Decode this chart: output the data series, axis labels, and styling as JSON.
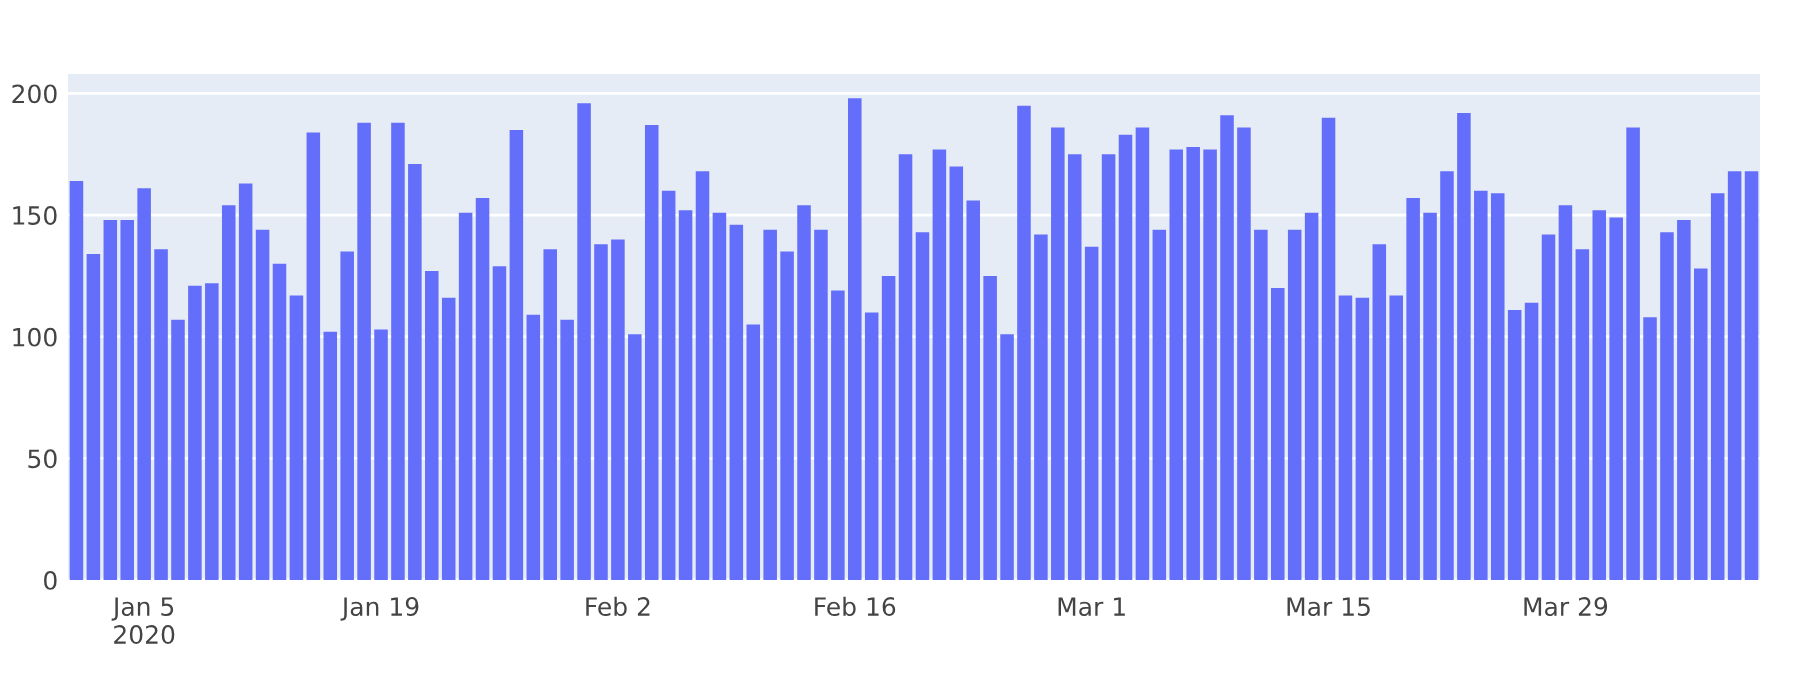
{
  "chart_data": {
    "type": "bar",
    "x": [
      "2020-01-01",
      "2020-01-02",
      "2020-01-03",
      "2020-01-04",
      "2020-01-05",
      "2020-01-06",
      "2020-01-07",
      "2020-01-08",
      "2020-01-09",
      "2020-01-10",
      "2020-01-11",
      "2020-01-12",
      "2020-01-13",
      "2020-01-14",
      "2020-01-15",
      "2020-01-16",
      "2020-01-17",
      "2020-01-18",
      "2020-01-19",
      "2020-01-20",
      "2020-01-21",
      "2020-01-22",
      "2020-01-23",
      "2020-01-24",
      "2020-01-25",
      "2020-01-26",
      "2020-01-27",
      "2020-01-28",
      "2020-01-29",
      "2020-01-30",
      "2020-01-31",
      "2020-02-01",
      "2020-02-02",
      "2020-02-03",
      "2020-02-04",
      "2020-02-05",
      "2020-02-06",
      "2020-02-07",
      "2020-02-08",
      "2020-02-09",
      "2020-02-10",
      "2020-02-11",
      "2020-02-12",
      "2020-02-13",
      "2020-02-14",
      "2020-02-15",
      "2020-02-16",
      "2020-02-17",
      "2020-02-18",
      "2020-02-19",
      "2020-02-20",
      "2020-02-21",
      "2020-02-22",
      "2020-02-23",
      "2020-02-24",
      "2020-02-25",
      "2020-02-26",
      "2020-02-27",
      "2020-02-28",
      "2020-02-29",
      "2020-03-01",
      "2020-03-02",
      "2020-03-03",
      "2020-03-04",
      "2020-03-05",
      "2020-03-06",
      "2020-03-07",
      "2020-03-08",
      "2020-03-09",
      "2020-03-10",
      "2020-03-11",
      "2020-03-12",
      "2020-03-13",
      "2020-03-14",
      "2020-03-15",
      "2020-03-16",
      "2020-03-17",
      "2020-03-18",
      "2020-03-19",
      "2020-03-20",
      "2020-03-21",
      "2020-03-22",
      "2020-03-23",
      "2020-03-24",
      "2020-03-25",
      "2020-03-26",
      "2020-03-27",
      "2020-03-28",
      "2020-03-29",
      "2020-03-30",
      "2020-03-31",
      "2020-04-01",
      "2020-04-02",
      "2020-04-03",
      "2020-04-04",
      "2020-04-05",
      "2020-04-06",
      "2020-04-07",
      "2020-04-08",
      "2020-04-09"
    ],
    "values": [
      164,
      134,
      148,
      148,
      161,
      136,
      107,
      121,
      122,
      154,
      163,
      144,
      130,
      117,
      184,
      102,
      135,
      188,
      103,
      188,
      171,
      127,
      116,
      151,
      157,
      129,
      185,
      109,
      136,
      107,
      196,
      138,
      140,
      101,
      187,
      160,
      152,
      168,
      151,
      146,
      105,
      144,
      135,
      154,
      144,
      119,
      198,
      110,
      125,
      175,
      143,
      177,
      170,
      156,
      125,
      101,
      195,
      142,
      186,
      175,
      137,
      175,
      183,
      186,
      144,
      177,
      178,
      177,
      191,
      186,
      144,
      120,
      144,
      151,
      190,
      117,
      116,
      138,
      117,
      157,
      151,
      168,
      192,
      160,
      159,
      111,
      114,
      142,
      154,
      136,
      152,
      149,
      186,
      108,
      143,
      148,
      128,
      159,
      168,
      168
    ],
    "color": "#636efa",
    "xlim": [
      "2019-12-31T12:00",
      "2020-04-09T12:00"
    ],
    "xticks": [
      {
        "value": "2020-01-05",
        "label": "Jan 5\n2020"
      },
      {
        "value": "2020-01-19",
        "label": "Jan 19"
      },
      {
        "value": "2020-02-02",
        "label": "Feb 2"
      },
      {
        "value": "2020-02-16",
        "label": "Feb 16"
      },
      {
        "value": "2020-03-01",
        "label": "Mar 1"
      },
      {
        "value": "2020-03-15",
        "label": "Mar 15"
      },
      {
        "value": "2020-03-29",
        "label": "Mar 29"
      }
    ],
    "ylim": [
      0,
      208
    ],
    "yticks": [
      0,
      50,
      100,
      150,
      200
    ],
    "grid": "y",
    "legend": false
  }
}
